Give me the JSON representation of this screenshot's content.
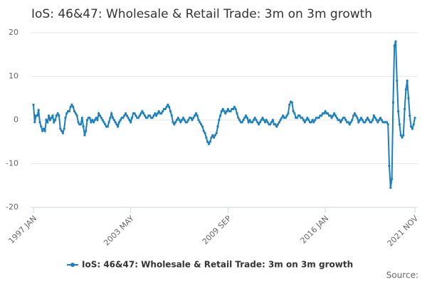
{
  "chart_data": {
    "type": "line",
    "title": "IoS: 46&47: Wholesale & Retail Trade: 3m on 3m growth",
    "source": "Source:",
    "categories": [
      "1997 JAN",
      null,
      null,
      null,
      null,
      null,
      null,
      null,
      null,
      null,
      null,
      null,
      null,
      null,
      null,
      null,
      null,
      null,
      null,
      null,
      null,
      null,
      null,
      null,
      null,
      null,
      null,
      null,
      null,
      null,
      null,
      null,
      null,
      null,
      null,
      null,
      null,
      null,
      null,
      null,
      null,
      null,
      null,
      null,
      null,
      null,
      null,
      null,
      null,
      null,
      null,
      null,
      null,
      null,
      null,
      null,
      null,
      null,
      null,
      null,
      null,
      null,
      null,
      null,
      null,
      null,
      null,
      null,
      null,
      null,
      null,
      null,
      null,
      null,
      null,
      null,
      "2003 MAY",
      null,
      null,
      null,
      null,
      null,
      null,
      null,
      null,
      null,
      null,
      null,
      null,
      null,
      null,
      null,
      null,
      null,
      null,
      null,
      null,
      null,
      null,
      null,
      null,
      null,
      null,
      null,
      null,
      null,
      null,
      null,
      null,
      null,
      null,
      null,
      null,
      null,
      null,
      null,
      null,
      null,
      null,
      null,
      null,
      null,
      null,
      null,
      null,
      null,
      null,
      null,
      null,
      null,
      null,
      null,
      null,
      null,
      null,
      null,
      null,
      null,
      null,
      null,
      null,
      null,
      null,
      null,
      null,
      null,
      null,
      null,
      null,
      null,
      null,
      null,
      "2009 SEP",
      null,
      null,
      null,
      null,
      null,
      null,
      null,
      null,
      null,
      null,
      null,
      null,
      null,
      null,
      null,
      null,
      null,
      null,
      null,
      null,
      null,
      null,
      null,
      null,
      null,
      null,
      null,
      null,
      null,
      null,
      null,
      null,
      null,
      null,
      null,
      null,
      null,
      null,
      null,
      null,
      null,
      null,
      null,
      null,
      null,
      null,
      null,
      null,
      null,
      null,
      null,
      null,
      null,
      null,
      null,
      null,
      null,
      null,
      null,
      null,
      null,
      null,
      null,
      null,
      null,
      null,
      null,
      null,
      null,
      null,
      null,
      null,
      null,
      null,
      null,
      "2016 JAN",
      null,
      null,
      null,
      null,
      null,
      null,
      null,
      null,
      null,
      null,
      null,
      null,
      null,
      null,
      null,
      null,
      null,
      null,
      null,
      null,
      null,
      null,
      null,
      null,
      null,
      null,
      null,
      null,
      null,
      null,
      null,
      null,
      null,
      null,
      null,
      null,
      null,
      null,
      null,
      null,
      null,
      null,
      null,
      null,
      null,
      null,
      null,
      null,
      null,
      null,
      null,
      null,
      null,
      null,
      null,
      null,
      null,
      null,
      null,
      null,
      null,
      null,
      null,
      null,
      null,
      null,
      null,
      null,
      null,
      "2021 NOV"
    ],
    "series": [
      {
        "name": "IoS: 46&47: Wholesale & Retail Trade: 3m on 3m growth",
        "color": "#1b7fbd",
        "values": [
          3.5,
          -0.5,
          1,
          1,
          2.3,
          -0.5,
          -1.5,
          -2.5,
          -2,
          -2.5,
          0,
          -0.5,
          1,
          0,
          0.5,
          1,
          -0.5,
          0,
          1,
          1.5,
          1,
          -2,
          -2.5,
          -3,
          -2,
          0.5,
          1.5,
          2,
          2,
          3,
          3.5,
          3,
          2,
          1.5,
          1,
          -0.5,
          -1,
          -1,
          0.5,
          -1.5,
          -3.5,
          -2.5,
          0,
          0.5,
          0.5,
          -0.5,
          0,
          -0.5,
          0,
          0.5,
          0,
          1.5,
          1,
          0.5,
          0,
          -0.5,
          -1,
          -1.5,
          -1.5,
          -0.5,
          0.5,
          1.5,
          0.5,
          0,
          -0.5,
          -1,
          -1.5,
          -0.5,
          0,
          0.5,
          0.5,
          1,
          1.5,
          1,
          0.5,
          0,
          -0.5,
          0.5,
          1.5,
          1.5,
          1,
          0.5,
          0.5,
          1,
          1.5,
          2,
          1.5,
          1,
          0.5,
          0.5,
          1,
          1,
          0.5,
          0.5,
          1,
          1.5,
          1,
          1.5,
          2,
          1.5,
          1.5,
          2,
          2.5,
          2.5,
          3,
          3.5,
          3,
          2,
          1,
          -0.5,
          -1,
          -0.5,
          0,
          0.5,
          0,
          -0.5,
          0,
          0.5,
          0,
          -0.5,
          -0.5,
          0,
          0.5,
          0.5,
          0,
          0.5,
          1,
          1.5,
          1,
          0,
          -0.5,
          -1,
          -1.5,
          -2.5,
          -3,
          -4,
          -5,
          -5.5,
          -5,
          -4,
          -3.5,
          -4,
          -3.5,
          -3,
          -1.5,
          0,
          1,
          2,
          2.5,
          2,
          1.5,
          2,
          2.5,
          2,
          2,
          2.5,
          2.5,
          3,
          2.5,
          1.5,
          0.5,
          0,
          -0.5,
          -0.5,
          0,
          0.5,
          1,
          0.5,
          -0.5,
          0,
          -0.5,
          -0.5,
          0,
          0.5,
          0,
          -0.5,
          -1,
          -0.5,
          0,
          0.5,
          0,
          -0.5,
          0,
          -0.5,
          -1,
          -1,
          -0.5,
          0,
          -1,
          -1,
          -1.5,
          -1,
          -0.5,
          0,
          0.5,
          1,
          0.5,
          0.5,
          1,
          1.5,
          3.5,
          4.2,
          4,
          2,
          1.5,
          0.5,
          0.5,
          1,
          1,
          0.5,
          0.5,
          0,
          -0.5,
          0,
          0.5,
          0,
          -0.5,
          -0.5,
          0,
          -0.5,
          0,
          0.5,
          0.5,
          0.5,
          1,
          1,
          1.5,
          1.5,
          2,
          1.5,
          1.5,
          1,
          1,
          0.5,
          1,
          1.5,
          1,
          0.5,
          0,
          0,
          -0.5,
          0,
          0.5,
          0.5,
          0,
          -0.5,
          -0.5,
          -1,
          -0.5,
          0,
          1,
          1.5,
          1,
          0.5,
          -0.5,
          0,
          0.5,
          0,
          -0.5,
          -0.5,
          0,
          0.5,
          0,
          -0.5,
          -0.5,
          0,
          1,
          0.5,
          0,
          -0.5,
          0,
          0.5,
          0,
          -0.5,
          -0.5,
          -0.5,
          -0.5,
          -1,
          -10.5,
          -15.5,
          -13.5,
          4,
          17,
          18,
          9,
          2,
          -1,
          -3.5,
          -4,
          -3.5,
          2.5,
          7,
          9,
          5,
          1,
          -1.5,
          -2,
          -1,
          0.5
        ]
      }
    ],
    "ylim": [
      -20,
      20
    ],
    "yticks": [
      -20,
      -10,
      0,
      10,
      20
    ],
    "grid": true
  }
}
